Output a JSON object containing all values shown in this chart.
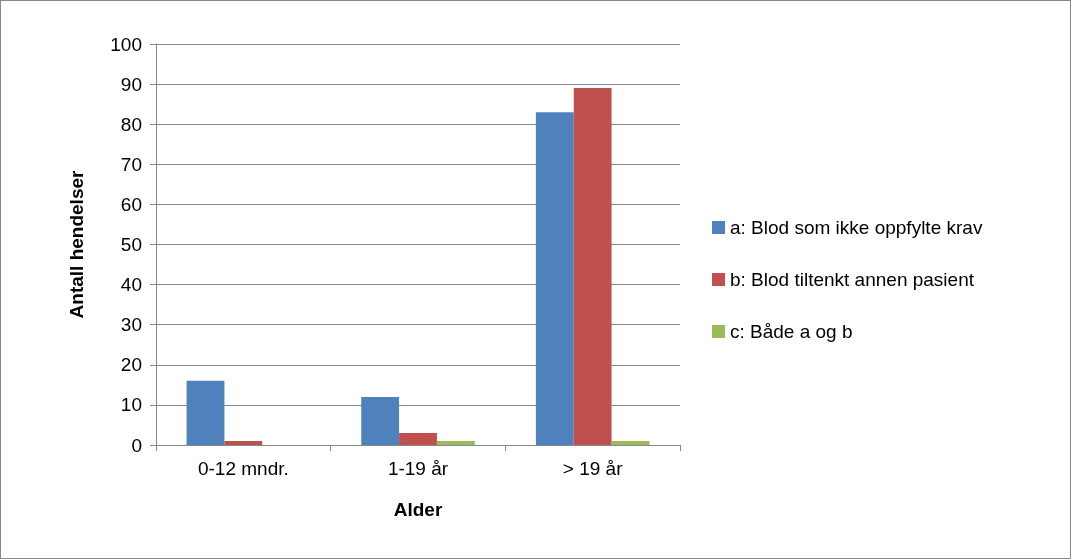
{
  "chart_data": {
    "type": "bar",
    "xlabel": "Alder",
    "ylabel": "Antall hendelser",
    "categories": [
      "0-12 mndr.",
      "1-19 år",
      "> 19 år"
    ],
    "series": [
      {
        "name": "a: Blod som ikke oppfylte krav",
        "color": "#4f81bd",
        "values": [
          16,
          12,
          83
        ]
      },
      {
        "name": "b: Blod tiltenkt annen pasient",
        "color": "#c0504d",
        "values": [
          1,
          3,
          89
        ]
      },
      {
        "name": "c: Både a og b",
        "color": "#9bbb59",
        "values": [
          0,
          1,
          1
        ]
      }
    ],
    "ylim": [
      0,
      100
    ],
    "yticks": [
      0,
      10,
      20,
      30,
      40,
      50,
      60,
      70,
      80,
      90,
      100
    ],
    "grid": "y",
    "legend": "right"
  }
}
